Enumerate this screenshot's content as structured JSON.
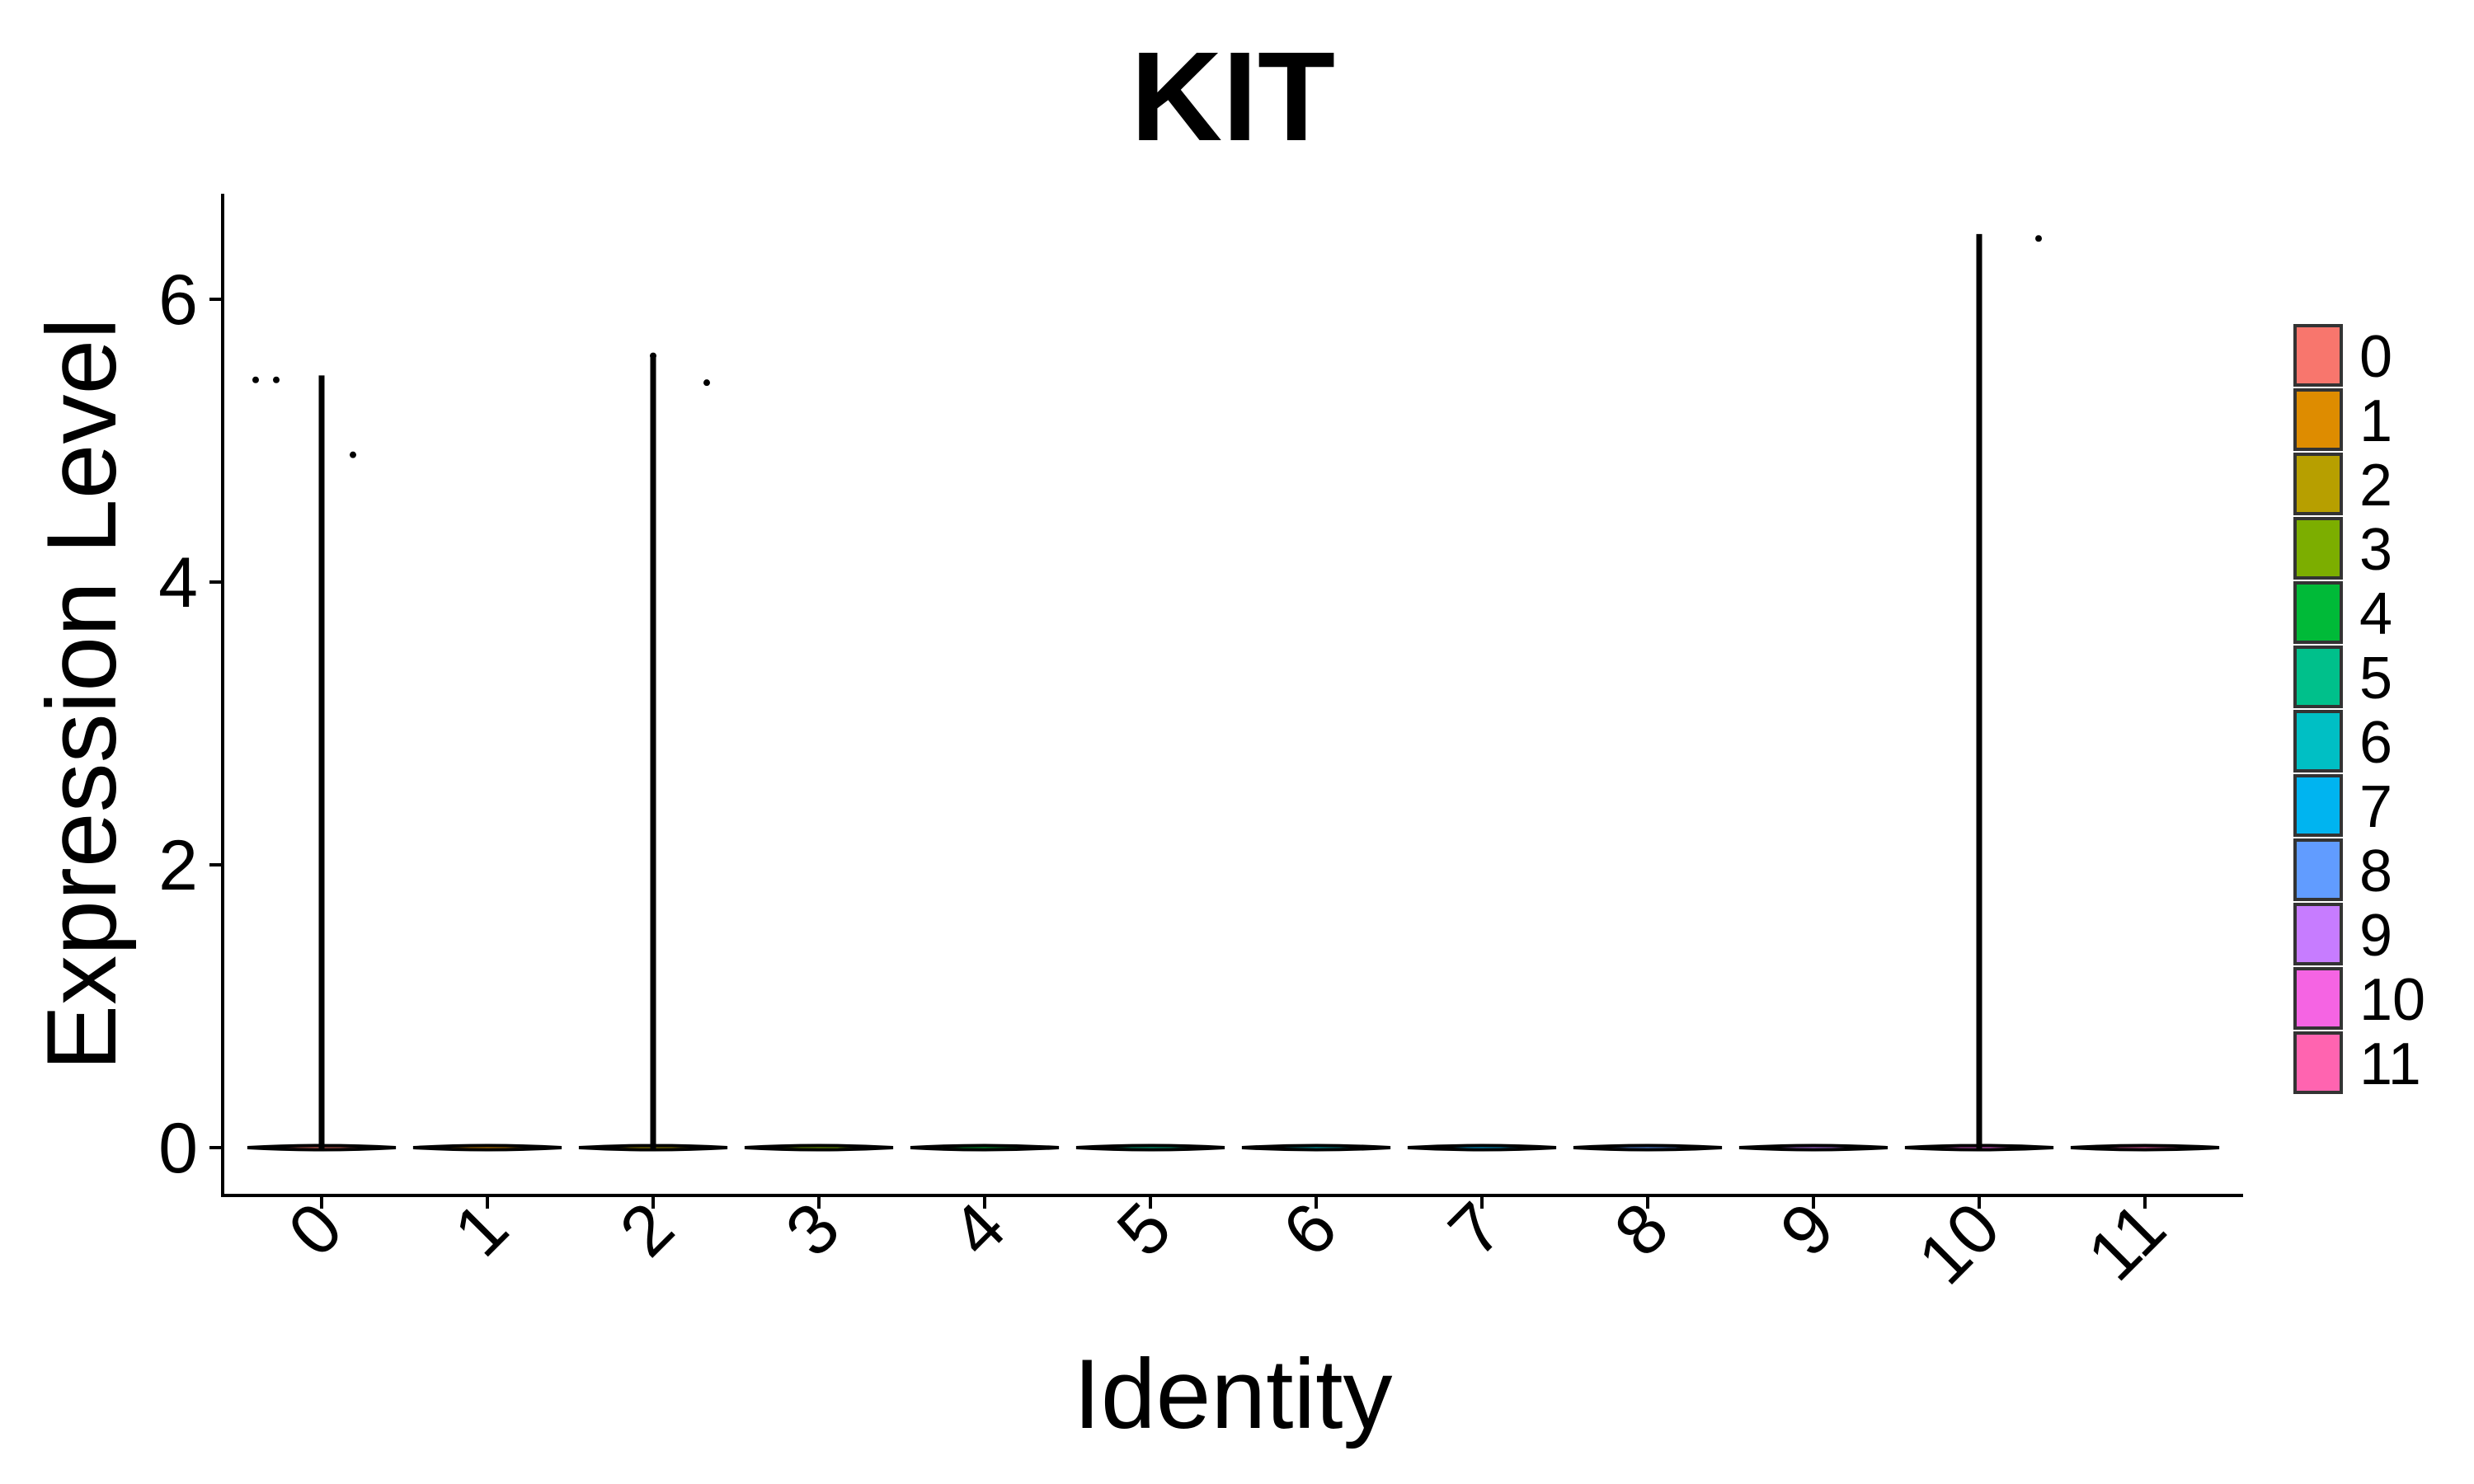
{
  "chart_data": {
    "type": "violin",
    "title": "KIT",
    "xlabel": "Identity",
    "ylabel": "Expression Level",
    "categories": [
      "0",
      "1",
      "2",
      "3",
      "4",
      "5",
      "6",
      "7",
      "8",
      "9",
      "10",
      "11"
    ],
    "colors": [
      "#F8766D",
      "#DE8C00",
      "#B79F00",
      "#7CAE00",
      "#00BA38",
      "#00C08B",
      "#00BFC4",
      "#00B4F0",
      "#619CFF",
      "#C77CFF",
      "#F564E3",
      "#FF64B0"
    ],
    "violin_max": [
      5.45,
      0,
      5.6,
      0,
      0,
      0,
      0,
      0,
      0,
      0,
      6.45,
      0
    ],
    "points": [
      {
        "category": "0",
        "y": 5.43
      },
      {
        "category": "0",
        "y": 5.43
      },
      {
        "category": "0",
        "y": 4.9
      },
      {
        "category": "2",
        "y": 5.6
      },
      {
        "category": "2",
        "y": 5.41
      },
      {
        "category": "10",
        "y": 6.43
      }
    ],
    "y_ticks": [
      0,
      2,
      4,
      6
    ],
    "ylim": [
      -0.32,
      6.75
    ],
    "legend": {
      "position": "right",
      "labels": [
        "0",
        "1",
        "2",
        "3",
        "4",
        "5",
        "6",
        "7",
        "8",
        "9",
        "10",
        "11"
      ]
    },
    "grid": false
  }
}
